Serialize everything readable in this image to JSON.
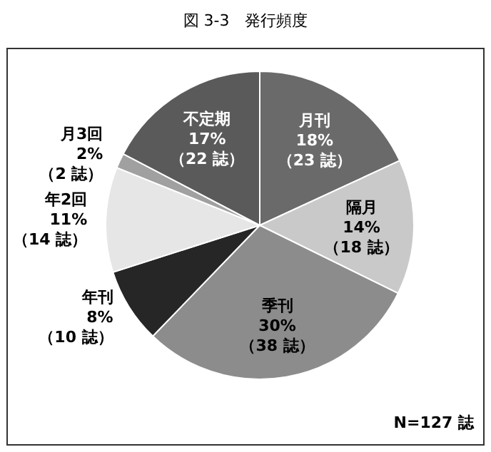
{
  "chart_data": {
    "type": "pie",
    "title": "図 3-3　発行頻度",
    "categories": [
      "月刊",
      "隔月",
      "季刊",
      "年刊",
      "年2回",
      "月3回",
      "不定期"
    ],
    "values": [
      23,
      18,
      38,
      10,
      14,
      2,
      22
    ],
    "value_labels": [
      "18%（23 誌）",
      "14%（18 誌）",
      "30%（38 誌）",
      "8%（10 誌）",
      "11%（14 誌）",
      "2%（2 誌）",
      "17%（22 誌）"
    ],
    "colors": [
      "#6a6a6a",
      "#c9c9c9",
      "#8c8c8c",
      "#262626",
      "#e6e6e6",
      "#a0a0a0",
      "#5a5a5a"
    ],
    "annotations": [
      "N=127 誌"
    ]
  }
}
